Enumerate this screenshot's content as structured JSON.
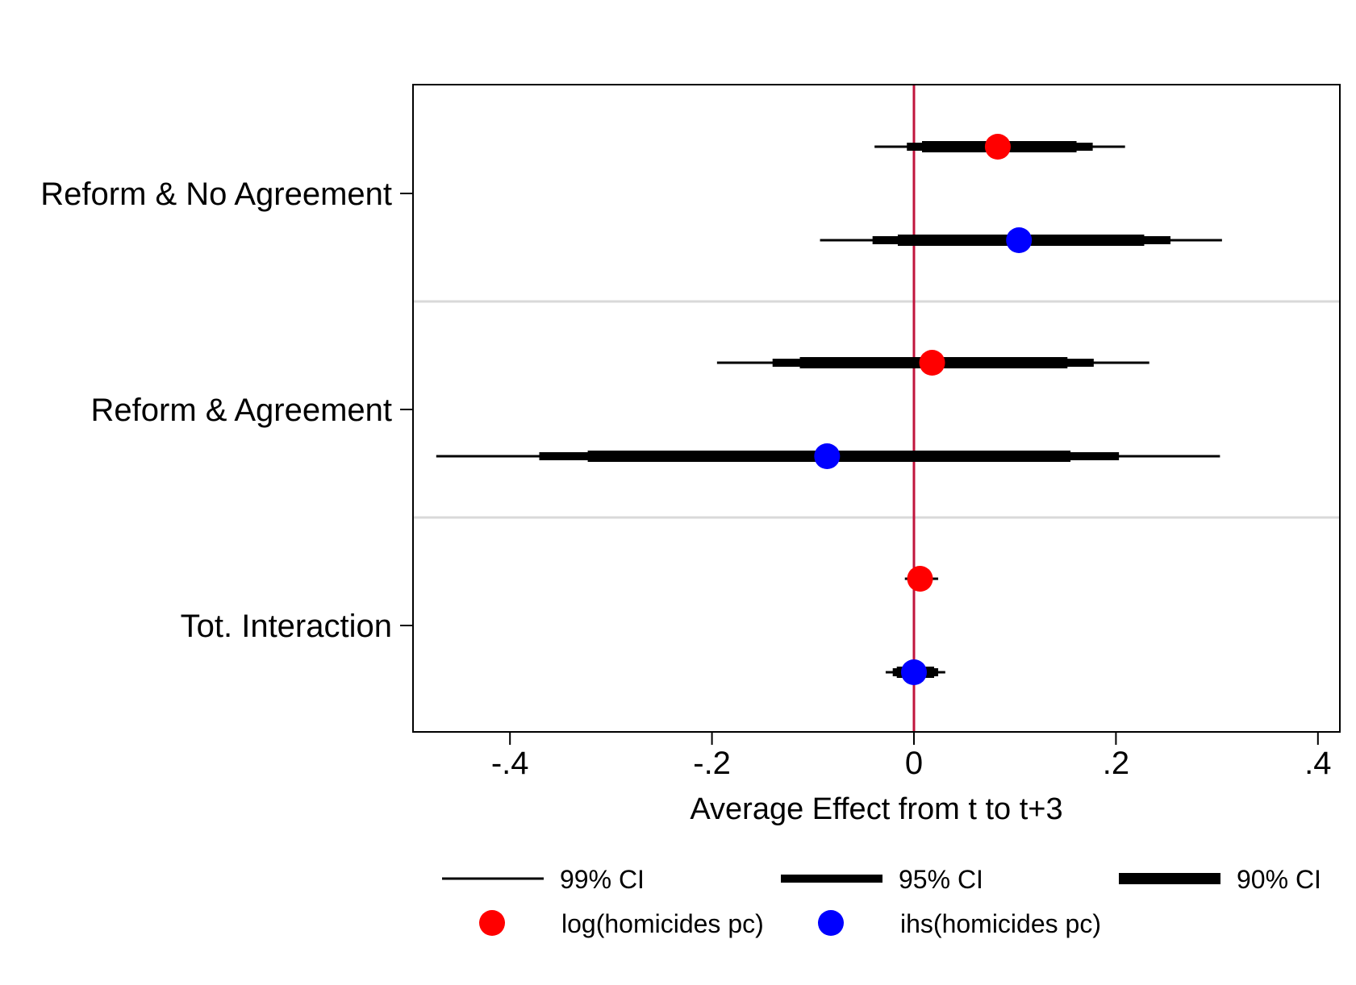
{
  "chart_data": {
    "type": "coefficient-plot",
    "title": "",
    "xlabel": "Average Effect from t to t+3",
    "ylabel": "",
    "xlim": [
      -0.495,
      0.42
    ],
    "xticks": [
      -0.4,
      -0.2,
      0,
      0.2,
      0.4
    ],
    "xtick_labels": [
      "-.4",
      "-.2",
      "0",
      ".2",
      ".4"
    ],
    "reference_line": {
      "x": 0,
      "color": "#c0143c"
    },
    "grid": false,
    "legend_position": "bottom",
    "groups": [
      {
        "label": "Reform & No Agreement",
        "estimates": [
          {
            "series": "log(homicides pc)",
            "coef": 0.083,
            "ci90": [
              0.008,
              0.161
            ],
            "ci95": [
              -0.007,
              0.177
            ],
            "ci99": [
              -0.039,
              0.209
            ]
          },
          {
            "series": "ihs(homicides pc)",
            "coef": 0.104,
            "ci90": [
              -0.016,
              0.228
            ],
            "ci95": [
              -0.041,
              0.254
            ],
            "ci99": [
              -0.093,
              0.305
            ]
          }
        ]
      },
      {
        "label": "Reform & Agreement",
        "estimates": [
          {
            "series": "log(homicides pc)",
            "coef": 0.018,
            "ci90": [
              -0.113,
              0.152
            ],
            "ci95": [
              -0.14,
              0.178
            ],
            "ci99": [
              -0.195,
              0.233
            ]
          },
          {
            "series": "ihs(homicides pc)",
            "coef": -0.086,
            "ci90": [
              -0.323,
              0.155
            ],
            "ci95": [
              -0.371,
              0.203
            ],
            "ci99": [
              -0.473,
              0.303
            ]
          }
        ]
      },
      {
        "label": "Tot. Interaction",
        "estimates": [
          {
            "series": "log(homicides pc)",
            "coef": 0.006,
            "ci90": [
              -0.002,
              0.015
            ],
            "ci95": [
              -0.004,
              0.018
            ],
            "ci99": [
              -0.009,
              0.024
            ]
          },
          {
            "series": "ihs(homicides pc)",
            "coef": 0.0,
            "ci90": [
              -0.017,
              0.02
            ],
            "ci95": [
              -0.021,
              0.024
            ],
            "ci99": [
              -0.028,
              0.031
            ]
          }
        ]
      }
    ],
    "series": [
      {
        "name": "log(homicides pc)",
        "color": "#ff0000"
      },
      {
        "name": "ihs(homicides pc)",
        "color": "#0000ff"
      }
    ],
    "ci_legend": [
      "99% CI",
      "95% CI",
      "90% CI"
    ]
  }
}
